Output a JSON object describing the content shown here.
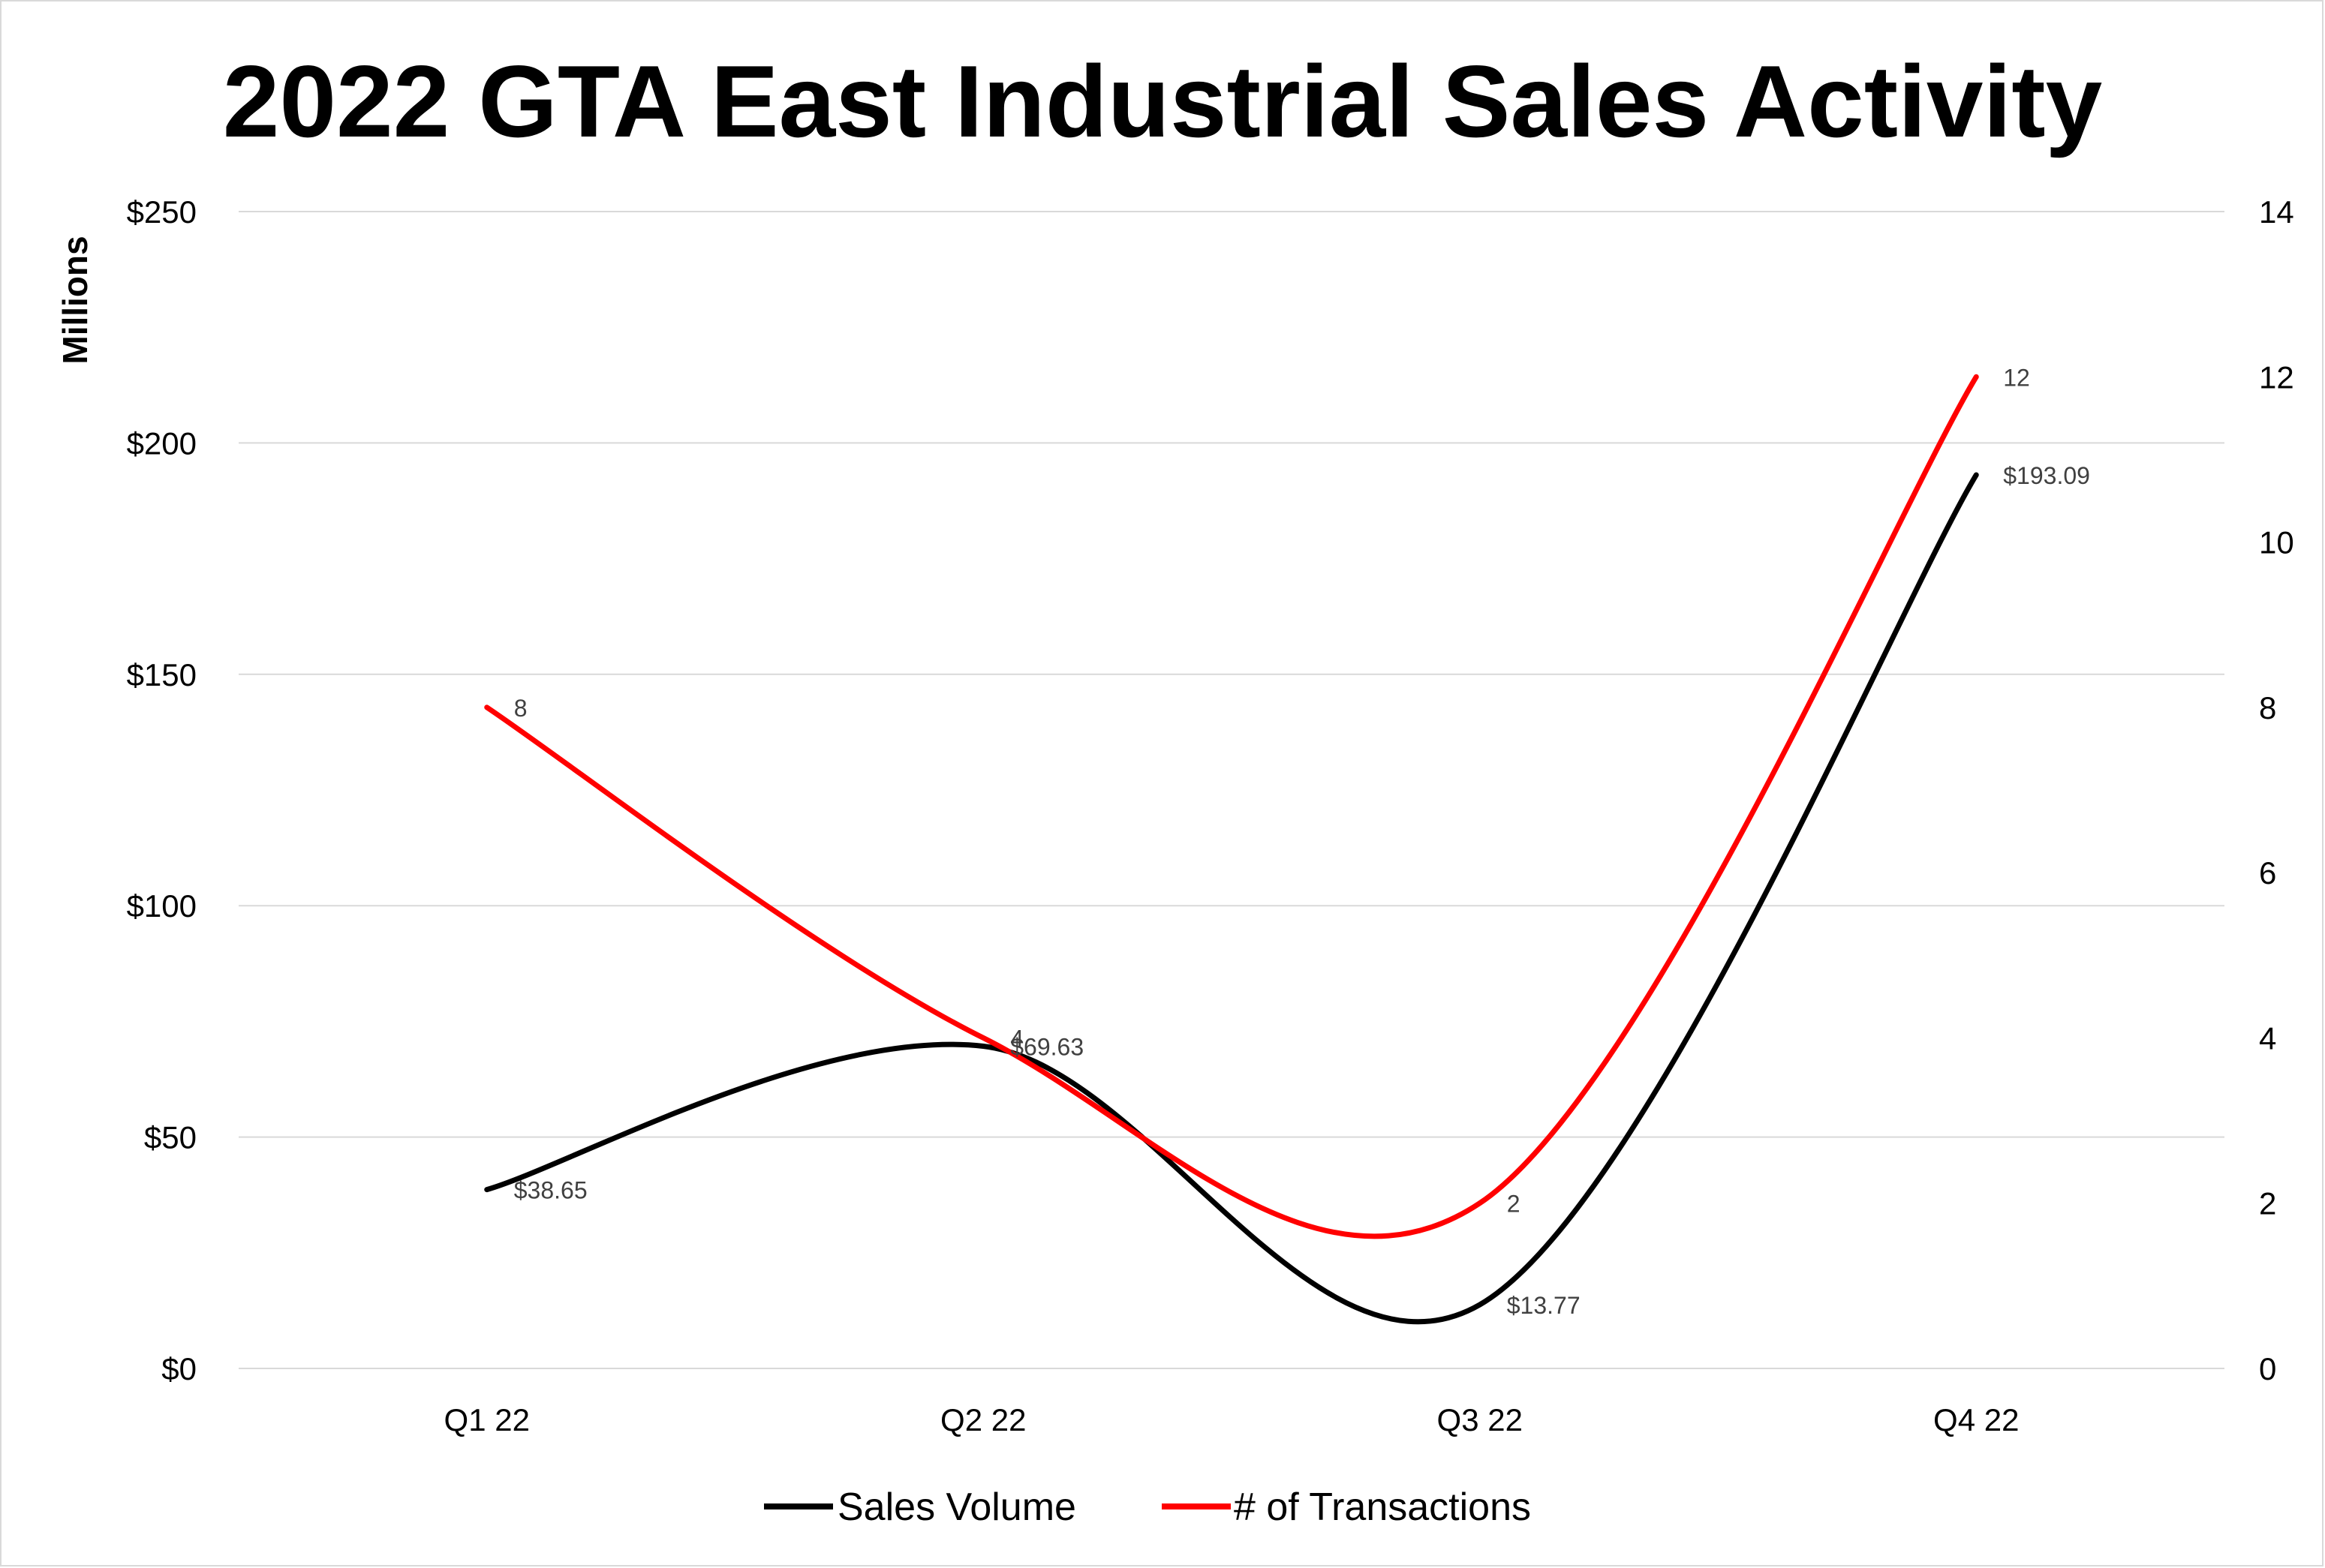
{
  "chart_data": {
    "type": "line",
    "title": "2022 GTA East Industrial Sales Activity",
    "categories": [
      "Q1 22",
      "Q2 22",
      "Q3 22",
      "Q4 22"
    ],
    "y_left": {
      "label": "Millions",
      "range": [
        0,
        250
      ],
      "ticks": [
        0,
        50,
        100,
        150,
        200,
        250
      ],
      "tick_labels": [
        "$0",
        "$50",
        "$100",
        "$150",
        "$200",
        "$250"
      ]
    },
    "y_right": {
      "range": [
        0,
        14
      ],
      "ticks": [
        0,
        2,
        4,
        6,
        8,
        10,
        12,
        14
      ],
      "tick_labels": [
        "0",
        "2",
        "4",
        "6",
        "8",
        "10",
        "12",
        "14"
      ]
    },
    "series": [
      {
        "name": "Sales Volume",
        "axis": "left",
        "color": "#000000",
        "values": [
          38.65,
          69.63,
          13.77,
          193.09
        ],
        "labels": [
          "$38.65",
          "$69.63",
          "$13.77",
          "$193.09"
        ]
      },
      {
        "name": "# of Transactions",
        "axis": "right",
        "color": "#ff0000",
        "values": [
          8,
          4,
          2,
          12
        ],
        "labels": [
          "8",
          "4",
          "2",
          "12"
        ]
      }
    ],
    "smooth": true,
    "grid": true,
    "legend": "bottom"
  }
}
